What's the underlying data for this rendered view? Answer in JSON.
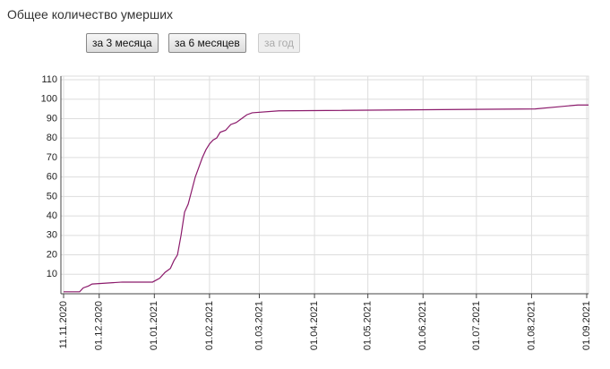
{
  "header": {
    "title": "Общее количество умерших",
    "buttons": [
      "за 3 месяца",
      "за 6 месяцев",
      "за год"
    ]
  },
  "chart_data": {
    "type": "line",
    "x": [
      "11.11.2020",
      "20.11.2020",
      "22.11.2020",
      "25.11.2020",
      "27.11.2020",
      "14.12.2020",
      "31.12.2020",
      "04.01.2021",
      "07.01.2021",
      "10.01.2021",
      "12.01.2021",
      "14.01.2021",
      "16.01.2021",
      "18.01.2021",
      "20.01.2021",
      "22.01.2021",
      "24.01.2021",
      "26.01.2021",
      "28.01.2021",
      "30.01.2021",
      "01.02.2021",
      "03.02.2021",
      "05.02.2021",
      "07.02.2021",
      "10.02.2021",
      "13.02.2021",
      "16.02.2021",
      "19.02.2021",
      "22.02.2021",
      "25.02.2021",
      "12.03.2021",
      "03.08.2021",
      "15.08.2021",
      "27.08.2021",
      "02.09.2021"
    ],
    "values": [
      1,
      1,
      3,
      4,
      5,
      6,
      6,
      8,
      11,
      13,
      17,
      20,
      30,
      42,
      46,
      53,
      60,
      65,
      70,
      74,
      77,
      79,
      80,
      83,
      84,
      87,
      88,
      90,
      92,
      93,
      94,
      95,
      96,
      97,
      97
    ],
    "color": "#8b1a6b",
    "xlim": [
      "11.11.2020",
      "02.09.2021"
    ],
    "xticks": [
      "11.11.2020",
      "01.12.2020",
      "01.01.2021",
      "01.02.2021",
      "01.03.2021",
      "01.04.2021",
      "01.05.2021",
      "01.06.2021",
      "01.07.2021",
      "01.08.2021",
      "01.09.2021"
    ],
    "ylim": [
      0,
      110
    ],
    "yticks": [
      10,
      20,
      30,
      40,
      50,
      60,
      70,
      80,
      90,
      100,
      110
    ],
    "grid": true
  }
}
